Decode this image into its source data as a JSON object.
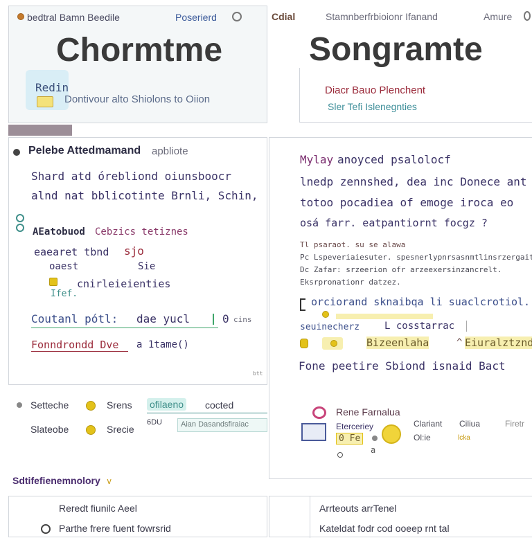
{
  "left_header": {
    "tab_label": "bedtral Bamn Beedile",
    "right_label": "Poserierd",
    "title": "Chormtme",
    "card_title": "Redin",
    "card_text": "Dontivour alto Shiolons to Oiion"
  },
  "right_header": {
    "left_label": "Cdial",
    "center_label": "Stamnberfrbioionr Ifanand",
    "right_label": "Amure",
    "title": "Songramte",
    "subtitle": "Diacr Bauo Plenchent",
    "caption": "Sler Tefi Islenegnties"
  },
  "left_section": {
    "heading": "Pelebe Attedmamand",
    "heading_suffix": "apbliote",
    "line1": "Shard atd órebliond oiunsboocr",
    "line2": "alnd nat bblicotinte Brnli, Schin,",
    "sub_label_a": "AEatobuod",
    "sub_label_b": "Cebzics tetiznes",
    "item1": "eaearet tbnd",
    "item1_mark": "sjo",
    "item2": "oaest",
    "item2_val": "Sie",
    "item3": "cnirleieienties",
    "item3_note": "Ifef.",
    "total_label": "Coutanl pótl:",
    "total_value": "dae yucl",
    "total_extra": "0",
    "total_extra2": "cins",
    "footer_label": "Fonndrondd Dve",
    "footer_val": "a 1tame()",
    "corner_mark": "btt"
  },
  "right_section": {
    "line1_a": "Mylay",
    "line1_b": "anoyced psalolocf",
    "line2": "lnedp zennshed, dea inc Donece ant",
    "line3": "totoo pocadiea of emoge iroca eo",
    "line4": "osá farr. eatpantiornt focgz ?",
    "small1": "Tl psaraot. su se alawa",
    "small2": "Pc Lspeveriaiesuter. spesnerlypnrsasnmtlinsrzergaite",
    "small3": "Dc Zafar: srzeerion ofr arzeexersinzancrelt.",
    "small4": "Eksrpronationr datzez.",
    "line5": "orciorand sknaibqa li suaclcrotiol.",
    "line6_a": "seuinecherz",
    "line6_b": "L cosstarrac",
    "line7_a": "Bizeenlaha",
    "line7_b": "Eiuralztznd",
    "line8": "Fone peetire Sbiond isnaid Bact"
  },
  "bottom_left": {
    "row1_label": "Setteche",
    "row1_a": "Srens",
    "row1_b": "ofilaeno",
    "row1_c": "cocted",
    "row2_label": "Slateobe",
    "row2_a": "Srecie",
    "row2_b": "6DU",
    "row2_c": "Aian Dasandsfiraiac"
  },
  "bottom_right": {
    "head": "Rene Farnalua",
    "label1": "Eterceriey",
    "chip": "0 Fe",
    "mark": "a",
    "col1_head": "Clariant",
    "col1_val": "Ol:ie",
    "col2_head": "Ciliua",
    "col2_val": "lcka",
    "col3_head": "Firetr"
  },
  "footer": {
    "brand": "Sdtifefienemnolory",
    "left_title": "Reredt fiunilc Aeel",
    "left_item": "Parthe frere fuent fowrsrid",
    "right_title": "Arrteouts arrTenel",
    "right_item": "Kateldat fodr cod ooeep rnt tal"
  },
  "colors": {
    "accent_purple": "#4a2c6e",
    "accent_red": "#9a2a3a",
    "accent_teal": "#3f8f8a",
    "highlight_yellow": "#f7efb0",
    "highlight_teal": "#d4f0ec"
  }
}
